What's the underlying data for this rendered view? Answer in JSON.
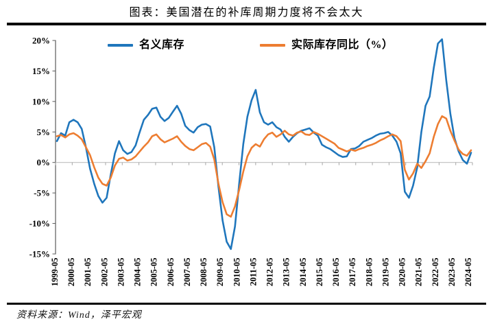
{
  "header": {
    "title": "图表：美国潜在的补库周期力度将不会太大"
  },
  "footer": {
    "source": "资料来源：Wind，泽平宏观"
  },
  "chart_data": {
    "type": "line",
    "title": "图表：美国潜在的补库周期力度将不会太大",
    "grid": false,
    "legend_position": "top",
    "x_axis": {
      "ticks": [
        "1999-05",
        "2000-05",
        "2001-05",
        "2002-05",
        "2003-05",
        "2004-05",
        "2005-05",
        "2006-05",
        "2007-05",
        "2008-05",
        "2009-05",
        "2010-05",
        "2011-05",
        "2012-05",
        "2013-05",
        "2014-05",
        "2015-05",
        "2016-05",
        "2017-05",
        "2018-05",
        "2019-05",
        "2020-05",
        "2021-05",
        "2022-05",
        "2023-05",
        "2024-05"
      ]
    },
    "y_axis": {
      "ticks": [
        "20%",
        "15%",
        "10%",
        "5%",
        "0%",
        "-5%",
        "-10%",
        "-15%"
      ],
      "min": -15,
      "max": 20,
      "unit": "%"
    },
    "x_start": "1999-05",
    "x_end": "2024-05",
    "points_interval_months": 3,
    "series": [
      {
        "name": "名义库存",
        "color": "#1f76bc",
        "values": [
          3.5,
          4.8,
          4.4,
          6.6,
          7.0,
          6.6,
          5.5,
          2.5,
          -1.0,
          -3.5,
          -5.5,
          -6.6,
          -5.8,
          -2.0,
          1.5,
          3.5,
          2.0,
          1.4,
          1.7,
          2.8,
          5.0,
          7.0,
          7.8,
          8.8,
          9.0,
          7.5,
          6.8,
          7.3,
          8.3,
          9.3,
          8.0,
          6.0,
          5.3,
          4.9,
          5.8,
          6.2,
          6.3,
          5.9,
          2.5,
          -4.0,
          -9.5,
          -13.0,
          -14.2,
          -10.5,
          -3.5,
          3.0,
          7.5,
          10.2,
          11.9,
          8.2,
          6.6,
          6.2,
          6.6,
          5.8,
          5.4,
          4.2,
          3.4,
          4.2,
          4.8,
          5.2,
          5.4,
          5.6,
          4.9,
          4.4,
          2.9,
          2.5,
          2.2,
          1.7,
          1.2,
          0.9,
          1.0,
          2.2,
          2.3,
          2.7,
          3.4,
          3.7,
          4.0,
          4.4,
          4.7,
          4.8,
          5.0,
          4.4,
          3.4,
          1.5,
          -4.8,
          -5.8,
          -3.8,
          -0.8,
          5.0,
          9.3,
          10.8,
          15.5,
          19.5,
          20.2,
          13.5,
          8.0,
          4.0,
          1.8,
          0.4,
          -0.2,
          1.6
        ]
      },
      {
        "name": "实际库存同比（%）",
        "color": "#ed7d31",
        "values": [
          4.3,
          4.5,
          4.1,
          4.6,
          4.8,
          4.4,
          3.8,
          2.5,
          1.2,
          -0.8,
          -2.5,
          -3.5,
          -3.8,
          -2.5,
          -0.5,
          0.6,
          0.8,
          0.3,
          0.5,
          1.0,
          1.8,
          2.6,
          3.3,
          4.3,
          4.6,
          3.8,
          3.3,
          3.6,
          3.9,
          4.3,
          3.4,
          2.7,
          2.2,
          2.0,
          2.5,
          3.0,
          3.2,
          2.6,
          0.5,
          -3.5,
          -6.5,
          -8.5,
          -8.9,
          -7.2,
          -4.5,
          -1.5,
          1.0,
          2.4,
          3.0,
          2.6,
          3.8,
          4.6,
          4.9,
          4.2,
          4.6,
          5.2,
          4.6,
          4.4,
          4.9,
          5.1,
          4.6,
          4.5,
          5.0,
          4.7,
          4.3,
          3.9,
          3.5,
          3.1,
          2.4,
          2.1,
          1.8,
          2.1,
          1.9,
          2.2,
          2.4,
          2.7,
          2.9,
          3.2,
          3.6,
          3.9,
          4.3,
          4.6,
          4.3,
          3.5,
          -1.2,
          -2.8,
          -1.8,
          -0.2,
          -0.9,
          0.2,
          1.5,
          4.2,
          6.3,
          7.6,
          7.2,
          5.2,
          3.6,
          2.1,
          1.4,
          1.1,
          2.0
        ]
      }
    ]
  }
}
